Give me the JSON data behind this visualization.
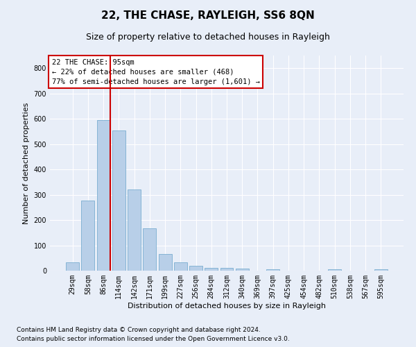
{
  "title": "22, THE CHASE, RAYLEIGH, SS6 8QN",
  "subtitle": "Size of property relative to detached houses in Rayleigh",
  "xlabel": "Distribution of detached houses by size in Rayleigh",
  "ylabel": "Number of detached properties",
  "categories": [
    "29sqm",
    "58sqm",
    "86sqm",
    "114sqm",
    "142sqm",
    "171sqm",
    "199sqm",
    "227sqm",
    "256sqm",
    "284sqm",
    "312sqm",
    "340sqm",
    "369sqm",
    "397sqm",
    "425sqm",
    "454sqm",
    "482sqm",
    "510sqm",
    "538sqm",
    "567sqm",
    "595sqm"
  ],
  "values": [
    33,
    278,
    595,
    553,
    320,
    168,
    65,
    33,
    18,
    10,
    10,
    8,
    0,
    6,
    0,
    0,
    0,
    6,
    0,
    0,
    6
  ],
  "bar_color": "#b8cfe8",
  "bar_edge_color": "#7aaed0",
  "vline_color": "#cc0000",
  "vline_bar_index": 2,
  "annotation_text": "22 THE CHASE: 95sqm\n← 22% of detached houses are smaller (468)\n77% of semi-detached houses are larger (1,601) →",
  "annotation_box_color": "#ffffff",
  "annotation_box_edge": "#cc0000",
  "ylim": [
    0,
    850
  ],
  "yticks": [
    0,
    100,
    200,
    300,
    400,
    500,
    600,
    700,
    800
  ],
  "background_color": "#e8eef8",
  "grid_color": "#ffffff",
  "footer_line1": "Contains HM Land Registry data © Crown copyright and database right 2024.",
  "footer_line2": "Contains public sector information licensed under the Open Government Licence v3.0.",
  "title_fontsize": 11,
  "subtitle_fontsize": 9,
  "axis_label_fontsize": 8,
  "tick_fontsize": 7,
  "annotation_fontsize": 7.5,
  "footer_fontsize": 6.5
}
